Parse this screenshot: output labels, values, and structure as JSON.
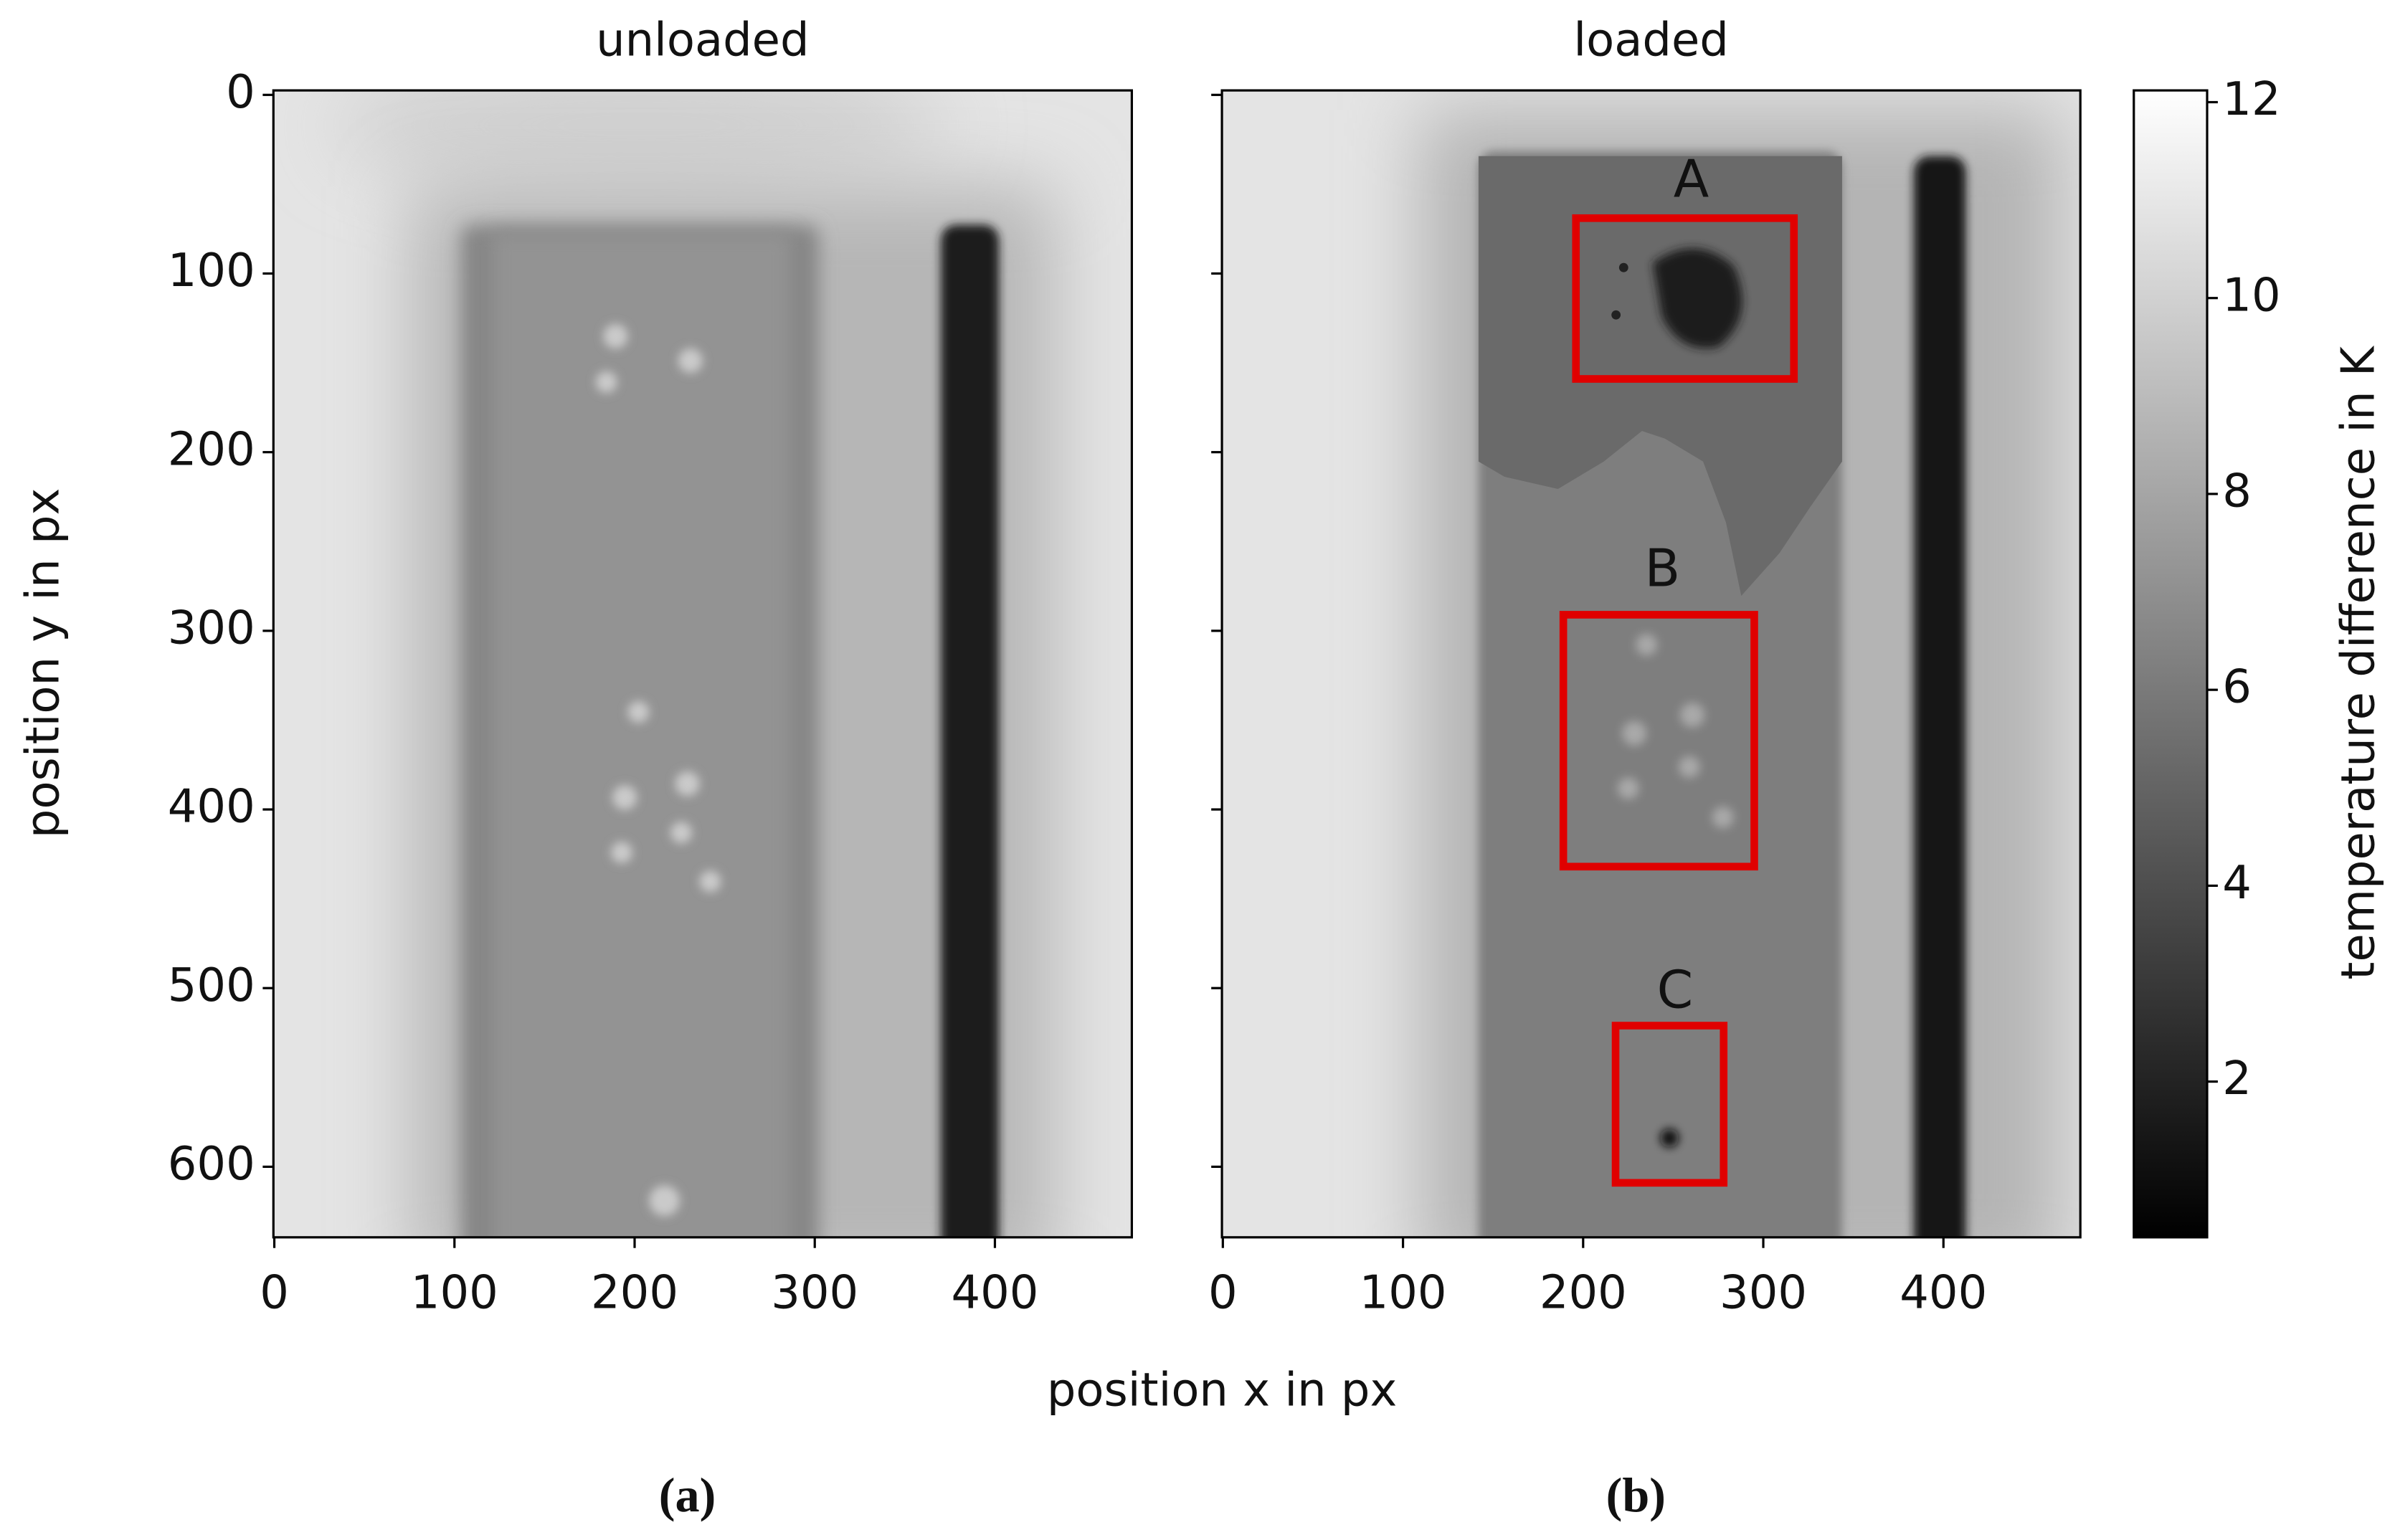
{
  "chart_data": [
    {
      "type": "heatmap",
      "title": "unloaded",
      "caption": "(a)",
      "xlim": [
        -0.5,
        476
      ],
      "ylim": [
        639.5,
        -2.5
      ],
      "xticks": [
        0,
        100,
        200,
        300,
        400
      ],
      "yticks": [
        0,
        100,
        200,
        300,
        400,
        500,
        600
      ],
      "show_yticklabels": true,
      "annotations": []
    },
    {
      "type": "heatmap",
      "title": "loaded",
      "caption": "(b)",
      "xlim": [
        -0.5,
        476
      ],
      "ylim": [
        639.5,
        -2.5
      ],
      "xticks": [
        0,
        100,
        200,
        300,
        400
      ],
      "yticks": [
        0,
        100,
        200,
        300,
        400,
        500,
        600
      ],
      "show_yticklabels": false,
      "annotation_color": "#e00000",
      "annotations": [
        {
          "text": "A",
          "x": 260,
          "y": 49,
          "box": {
            "x0": 196,
            "x1": 317,
            "y0": 69,
            "y1": 159
          }
        },
        {
          "text": "B",
          "x": 244,
          "y": 267,
          "box": {
            "x0": 189,
            "x1": 295,
            "y0": 291,
            "y1": 432
          }
        },
        {
          "text": "C",
          "x": 251,
          "y": 503,
          "box": {
            "x0": 218,
            "x1": 278,
            "y0": 521,
            "y1": 609
          }
        }
      ]
    }
  ],
  "figure": {
    "x_label": "position x in px",
    "y_label": "position y in px",
    "colorbar": {
      "label": "temperature difference in K",
      "clim": [
        0.41,
        12.12
      ],
      "ticks": [
        2,
        4,
        6,
        8,
        10,
        12
      ]
    }
  }
}
